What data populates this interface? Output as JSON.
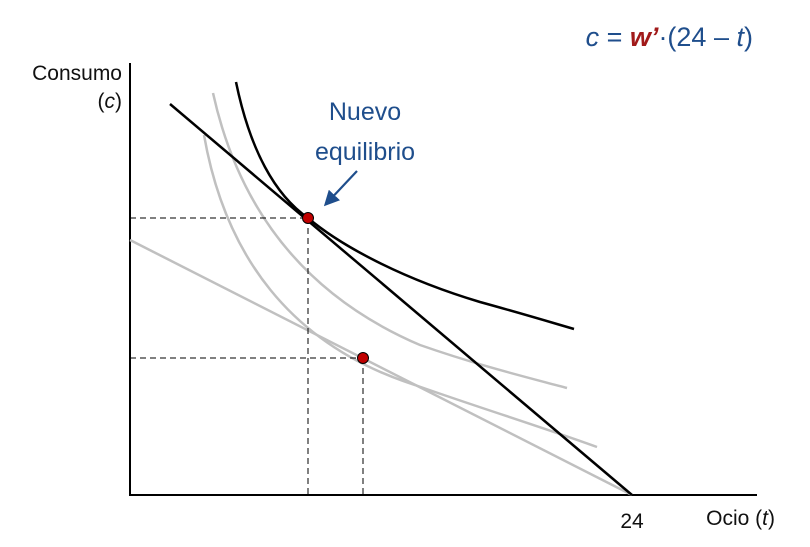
{
  "formula": {
    "c": "c",
    "eq": " = ",
    "w": "w’",
    "rest": "·(24 – ",
    "t": "t",
    "close": ")"
  },
  "y_axis": {
    "label_line1": "Consumo",
    "label_line2_open": "(",
    "label_line2_var": "c",
    "label_line2_close": ")"
  },
  "x_axis": {
    "label_text": "Ocio (",
    "label_var": "t",
    "label_close": ")",
    "tick_24": "24"
  },
  "annotation": {
    "line1": "Nuevo",
    "line2": "equilibrio"
  },
  "colors": {
    "formula_blue": "#1f4e8c",
    "formula_red": "#a11a1a",
    "annotation_blue": "#1f4e8c",
    "new_curve": "#000000",
    "old_curve": "#c0c0c0",
    "point_fill": "#c00000",
    "axis": "#000000"
  }
}
